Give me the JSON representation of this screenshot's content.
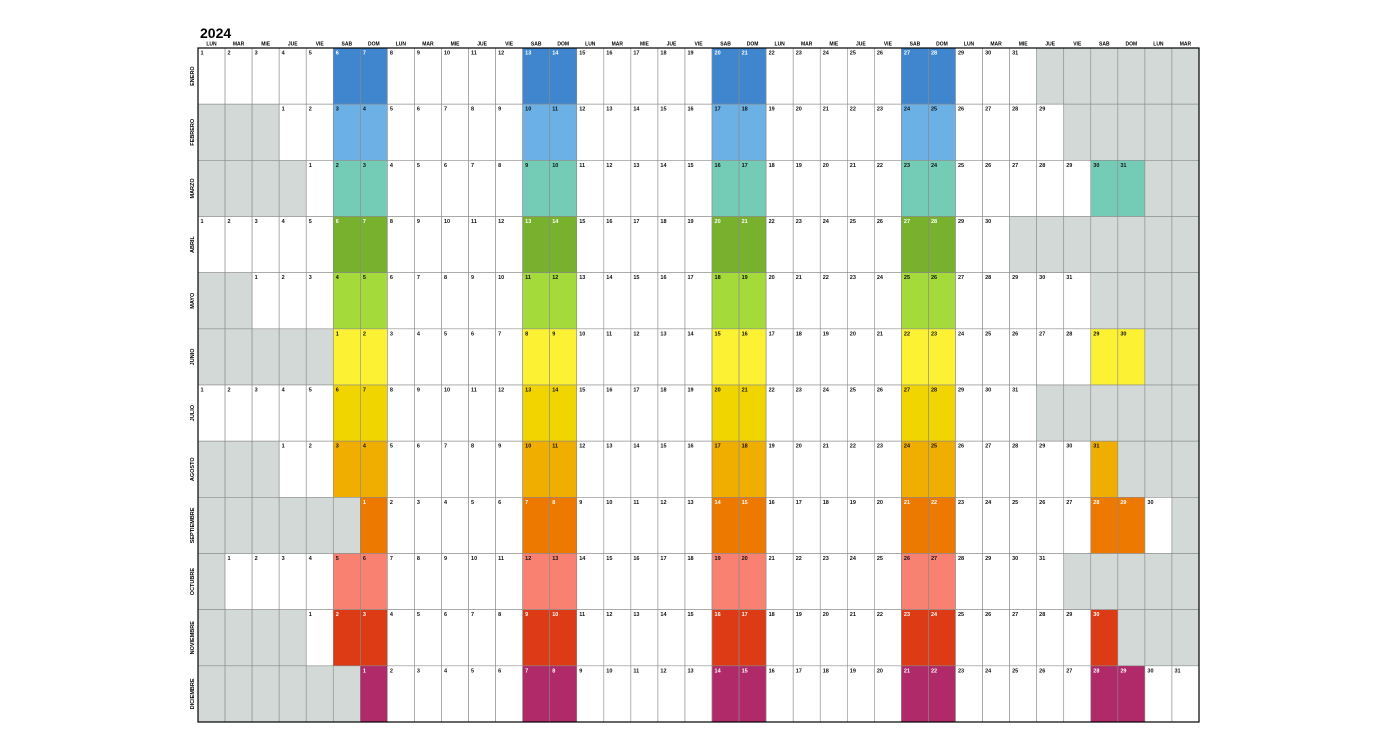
{
  "header": {
    "title": "2024"
  },
  "weekdays": [
    "LUN",
    "MAR",
    "MIE",
    "JUE",
    "VIE",
    "SAB",
    "DOM",
    "LUN",
    "MAR",
    "MIE",
    "JUE",
    "VIE",
    "SAB",
    "DOM",
    "LUN",
    "MAR",
    "MIE",
    "JUE",
    "VIE",
    "SAB",
    "DOM",
    "LUN",
    "MAR",
    "MIE",
    "JUE",
    "VIE",
    "SAB",
    "DOM",
    "LUN",
    "MAR",
    "MIE",
    "JUE",
    "VIE",
    "SAB",
    "DOM",
    "LUN",
    "MAR"
  ],
  "empty_color": "#d2d9d6",
  "months": [
    {
      "name": "ENERO",
      "color": "#3f86cf",
      "days": [
        1,
        2,
        3,
        4,
        5,
        6,
        7,
        8,
        9,
        10,
        11,
        12,
        13,
        14,
        15,
        16,
        17,
        18,
        19,
        20,
        21,
        22,
        23,
        24,
        25,
        26,
        27,
        28,
        29,
        30,
        31,
        null,
        null,
        null,
        null,
        null,
        null
      ]
    },
    {
      "name": "FEBRERO",
      "color": "#6cb1e5",
      "days": [
        null,
        null,
        null,
        1,
        2,
        3,
        4,
        5,
        6,
        7,
        8,
        9,
        10,
        11,
        12,
        13,
        14,
        15,
        16,
        17,
        18,
        19,
        20,
        21,
        22,
        23,
        24,
        25,
        26,
        27,
        28,
        29,
        null,
        null,
        null,
        null,
        null
      ]
    },
    {
      "name": "MARZO",
      "color": "#74ccb6",
      "days": [
        null,
        null,
        null,
        null,
        1,
        2,
        3,
        4,
        5,
        6,
        7,
        8,
        9,
        10,
        11,
        12,
        13,
        14,
        15,
        16,
        17,
        18,
        19,
        20,
        21,
        22,
        23,
        24,
        25,
        26,
        27,
        28,
        29,
        30,
        31,
        null,
        null
      ]
    },
    {
      "name": "ABRIL",
      "color": "#77b12d",
      "days": [
        1,
        2,
        3,
        4,
        5,
        6,
        7,
        8,
        9,
        10,
        11,
        12,
        13,
        14,
        15,
        16,
        17,
        18,
        19,
        20,
        21,
        22,
        23,
        24,
        25,
        26,
        27,
        28,
        29,
        30,
        null,
        null,
        null,
        null,
        null,
        null,
        null
      ]
    },
    {
      "name": "MAYO",
      "color": "#a5da3b",
      "days": [
        null,
        null,
        1,
        2,
        3,
        4,
        5,
        6,
        7,
        8,
        9,
        10,
        11,
        12,
        13,
        14,
        15,
        16,
        17,
        18,
        19,
        20,
        21,
        22,
        23,
        24,
        25,
        26,
        27,
        28,
        29,
        30,
        31,
        null,
        null,
        null,
        null
      ]
    },
    {
      "name": "JUNIO",
      "color": "#fcf132",
      "days": [
        null,
        null,
        null,
        null,
        null,
        1,
        2,
        3,
        4,
        5,
        6,
        7,
        8,
        9,
        10,
        11,
        12,
        13,
        14,
        15,
        16,
        17,
        18,
        19,
        20,
        21,
        22,
        23,
        24,
        25,
        26,
        27,
        28,
        29,
        30,
        null,
        null
      ]
    },
    {
      "name": "JULIO",
      "color": "#f0d500",
      "days": [
        1,
        2,
        3,
        4,
        5,
        6,
        7,
        8,
        9,
        10,
        11,
        12,
        13,
        14,
        15,
        16,
        17,
        18,
        19,
        20,
        21,
        22,
        23,
        24,
        25,
        26,
        27,
        28,
        29,
        30,
        31,
        null,
        null,
        null,
        null,
        null,
        null
      ]
    },
    {
      "name": "AGOSTO",
      "color": "#f0ae00",
      "days": [
        null,
        null,
        null,
        1,
        2,
        3,
        4,
        5,
        6,
        7,
        8,
        9,
        10,
        11,
        12,
        13,
        14,
        15,
        16,
        17,
        18,
        19,
        20,
        21,
        22,
        23,
        24,
        25,
        26,
        27,
        28,
        29,
        30,
        31,
        null,
        null,
        null
      ]
    },
    {
      "name": "SEPTIEMBRE",
      "color": "#ee7900",
      "days": [
        null,
        null,
        null,
        null,
        null,
        null,
        1,
        2,
        3,
        4,
        5,
        6,
        7,
        8,
        9,
        10,
        11,
        12,
        13,
        14,
        15,
        16,
        17,
        18,
        19,
        20,
        21,
        22,
        23,
        24,
        25,
        26,
        27,
        28,
        29,
        30,
        null
      ]
    },
    {
      "name": "OCTUBRE",
      "color": "#f98172",
      "days": [
        null,
        1,
        2,
        3,
        4,
        5,
        6,
        7,
        8,
        9,
        10,
        11,
        12,
        13,
        14,
        15,
        16,
        17,
        18,
        19,
        20,
        21,
        22,
        23,
        24,
        25,
        26,
        27,
        28,
        29,
        30,
        31,
        null,
        null,
        null,
        null,
        null
      ]
    },
    {
      "name": "NOVIEMBRE",
      "color": "#dc3b15",
      "days": [
        null,
        null,
        null,
        null,
        1,
        2,
        3,
        4,
        5,
        6,
        7,
        8,
        9,
        10,
        11,
        12,
        13,
        14,
        15,
        16,
        17,
        18,
        19,
        20,
        21,
        22,
        23,
        24,
        25,
        26,
        27,
        28,
        29,
        30,
        null,
        null,
        null
      ]
    },
    {
      "name": "DICIEMBRE",
      "color": "#b02a69",
      "days": [
        null,
        null,
        null,
        null,
        null,
        null,
        1,
        2,
        3,
        4,
        5,
        6,
        7,
        8,
        9,
        10,
        11,
        12,
        13,
        14,
        15,
        16,
        17,
        18,
        19,
        20,
        21,
        22,
        23,
        24,
        25,
        26,
        27,
        28,
        29,
        30,
        31
      ]
    }
  ]
}
